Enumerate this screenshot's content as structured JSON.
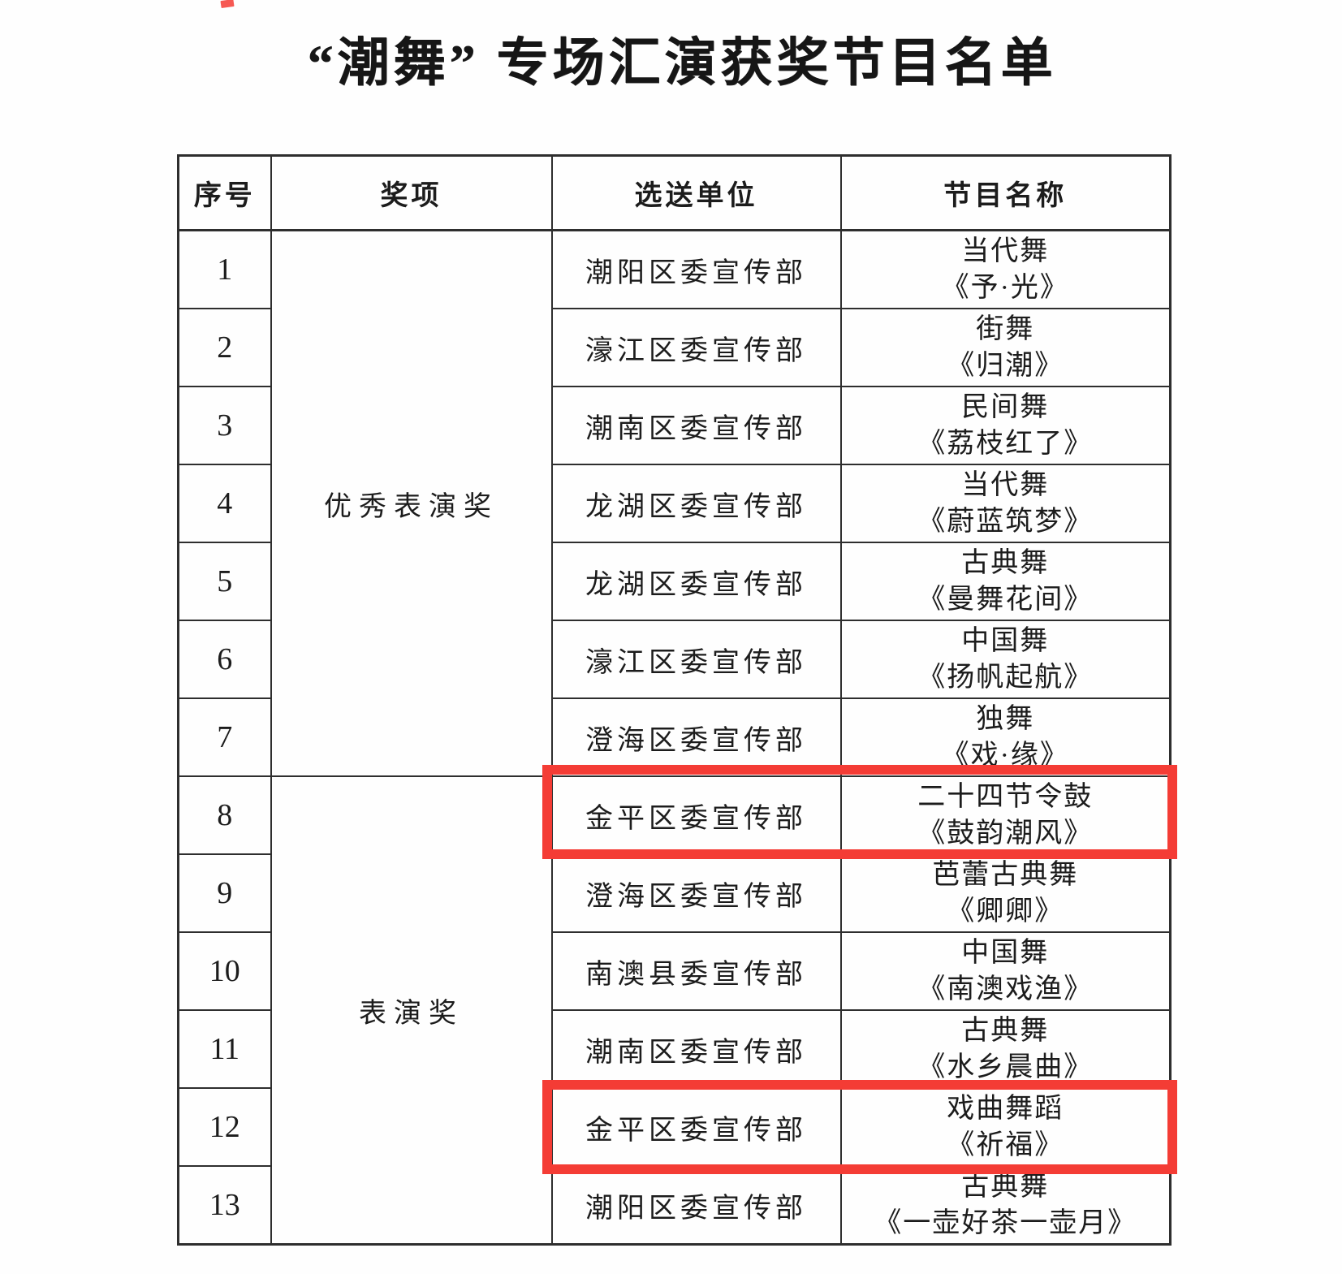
{
  "page": {
    "title": "“潮舞” 专场汇演获奖节目名单"
  },
  "table": {
    "headers": [
      "序号",
      "奖项",
      "选送单位",
      "节目名称"
    ],
    "awards": [
      {
        "label": "优秀表演奖"
      },
      {
        "label": "表演奖"
      }
    ],
    "rows": [
      {
        "no": "1",
        "unit": "潮阳区委宣传部",
        "genre": "当代舞",
        "title": "《予·光》",
        "highlighted": false
      },
      {
        "no": "2",
        "unit": "濠江区委宣传部",
        "genre": "街舞",
        "title": "《归潮》",
        "highlighted": false
      },
      {
        "no": "3",
        "unit": "潮南区委宣传部",
        "genre": "民间舞",
        "title": "《荔枝红了》",
        "highlighted": false
      },
      {
        "no": "4",
        "unit": "龙湖区委宣传部",
        "genre": "当代舞",
        "title": "《蔚蓝筑梦》",
        "highlighted": false
      },
      {
        "no": "5",
        "unit": "龙湖区委宣传部",
        "genre": "古典舞",
        "title": "《曼舞花间》",
        "highlighted": false
      },
      {
        "no": "6",
        "unit": "濠江区委宣传部",
        "genre": "中国舞",
        "title": "《扬帆起航》",
        "highlighted": false
      },
      {
        "no": "7",
        "unit": "澄海区委宣传部",
        "genre": "独舞",
        "title": "《戏·缘》",
        "highlighted": false
      },
      {
        "no": "8",
        "unit": "金平区委宣传部",
        "genre": "二十四节令鼓",
        "title": "《鼓韵潮风》",
        "highlighted": true
      },
      {
        "no": "9",
        "unit": "澄海区委宣传部",
        "genre": "芭蕾古典舞",
        "title": "《卿卿》",
        "highlighted": false
      },
      {
        "no": "10",
        "unit": "南澳县委宣传部",
        "genre": "中国舞",
        "title": "《南澳戏渔》",
        "highlighted": false
      },
      {
        "no": "11",
        "unit": "潮南区委宣传部",
        "genre": "古典舞",
        "title": "《水乡晨曲》",
        "highlighted": false
      },
      {
        "no": "12",
        "unit": "金平区委宣传部",
        "genre": "戏曲舞蹈",
        "title": "《祈福》",
        "highlighted": true
      },
      {
        "no": "13",
        "unit": "潮阳区委宣传部",
        "genre": "古典舞",
        "title": "《一壶好茶一壶月》",
        "highlighted": false
      }
    ]
  },
  "colors": {
    "highlight_red": "#f43c35",
    "text_ink": "#1c1c1c"
  }
}
